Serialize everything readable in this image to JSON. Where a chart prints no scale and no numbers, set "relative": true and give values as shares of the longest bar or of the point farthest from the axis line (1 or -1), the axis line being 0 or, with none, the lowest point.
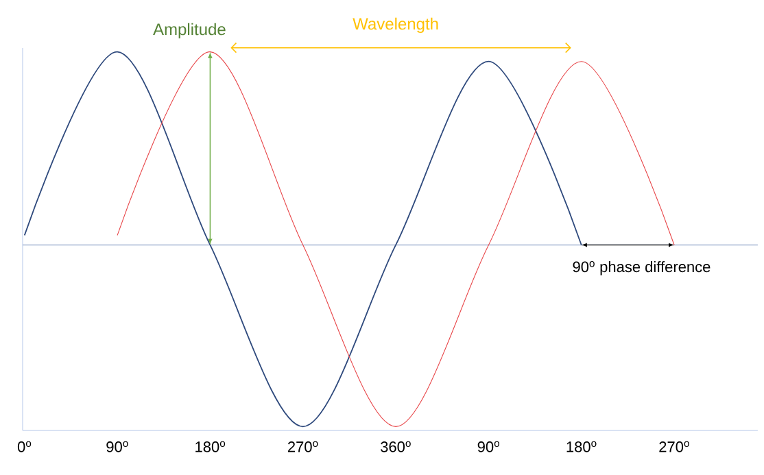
{
  "chart_data": {
    "type": "line",
    "relative": true,
    "grid": false,
    "marker": "none",
    "line_style": "solid",
    "categories": [
      "0$^{o}$",
      "90$^{o}$",
      "180$^{o}$",
      "270$^{o}$",
      "360$^{o}$",
      "90$^{o}$",
      "180$^{o}$",
      "270$^{o}$"
    ],
    "series": [
      {
        "color": "#2f4a7d",
        "values": [
          0.05,
          1.0,
          0,
          -0.94,
          0,
          0.95,
          0,
          null
        ]
      },
      {
        "color": "#e8474a",
        "values": [
          null,
          0.05,
          1.0,
          0,
          -0.94,
          0,
          0.95,
          0
        ]
      }
    ],
    "ref_lines": [
      {
        "axis": "y",
        "value": 0,
        "color": "#8fa3c8"
      }
    ],
    "annotations": [
      "Amplitude",
      "Wavelength",
      "90$^{o}$ phase difference"
    ]
  }
}
